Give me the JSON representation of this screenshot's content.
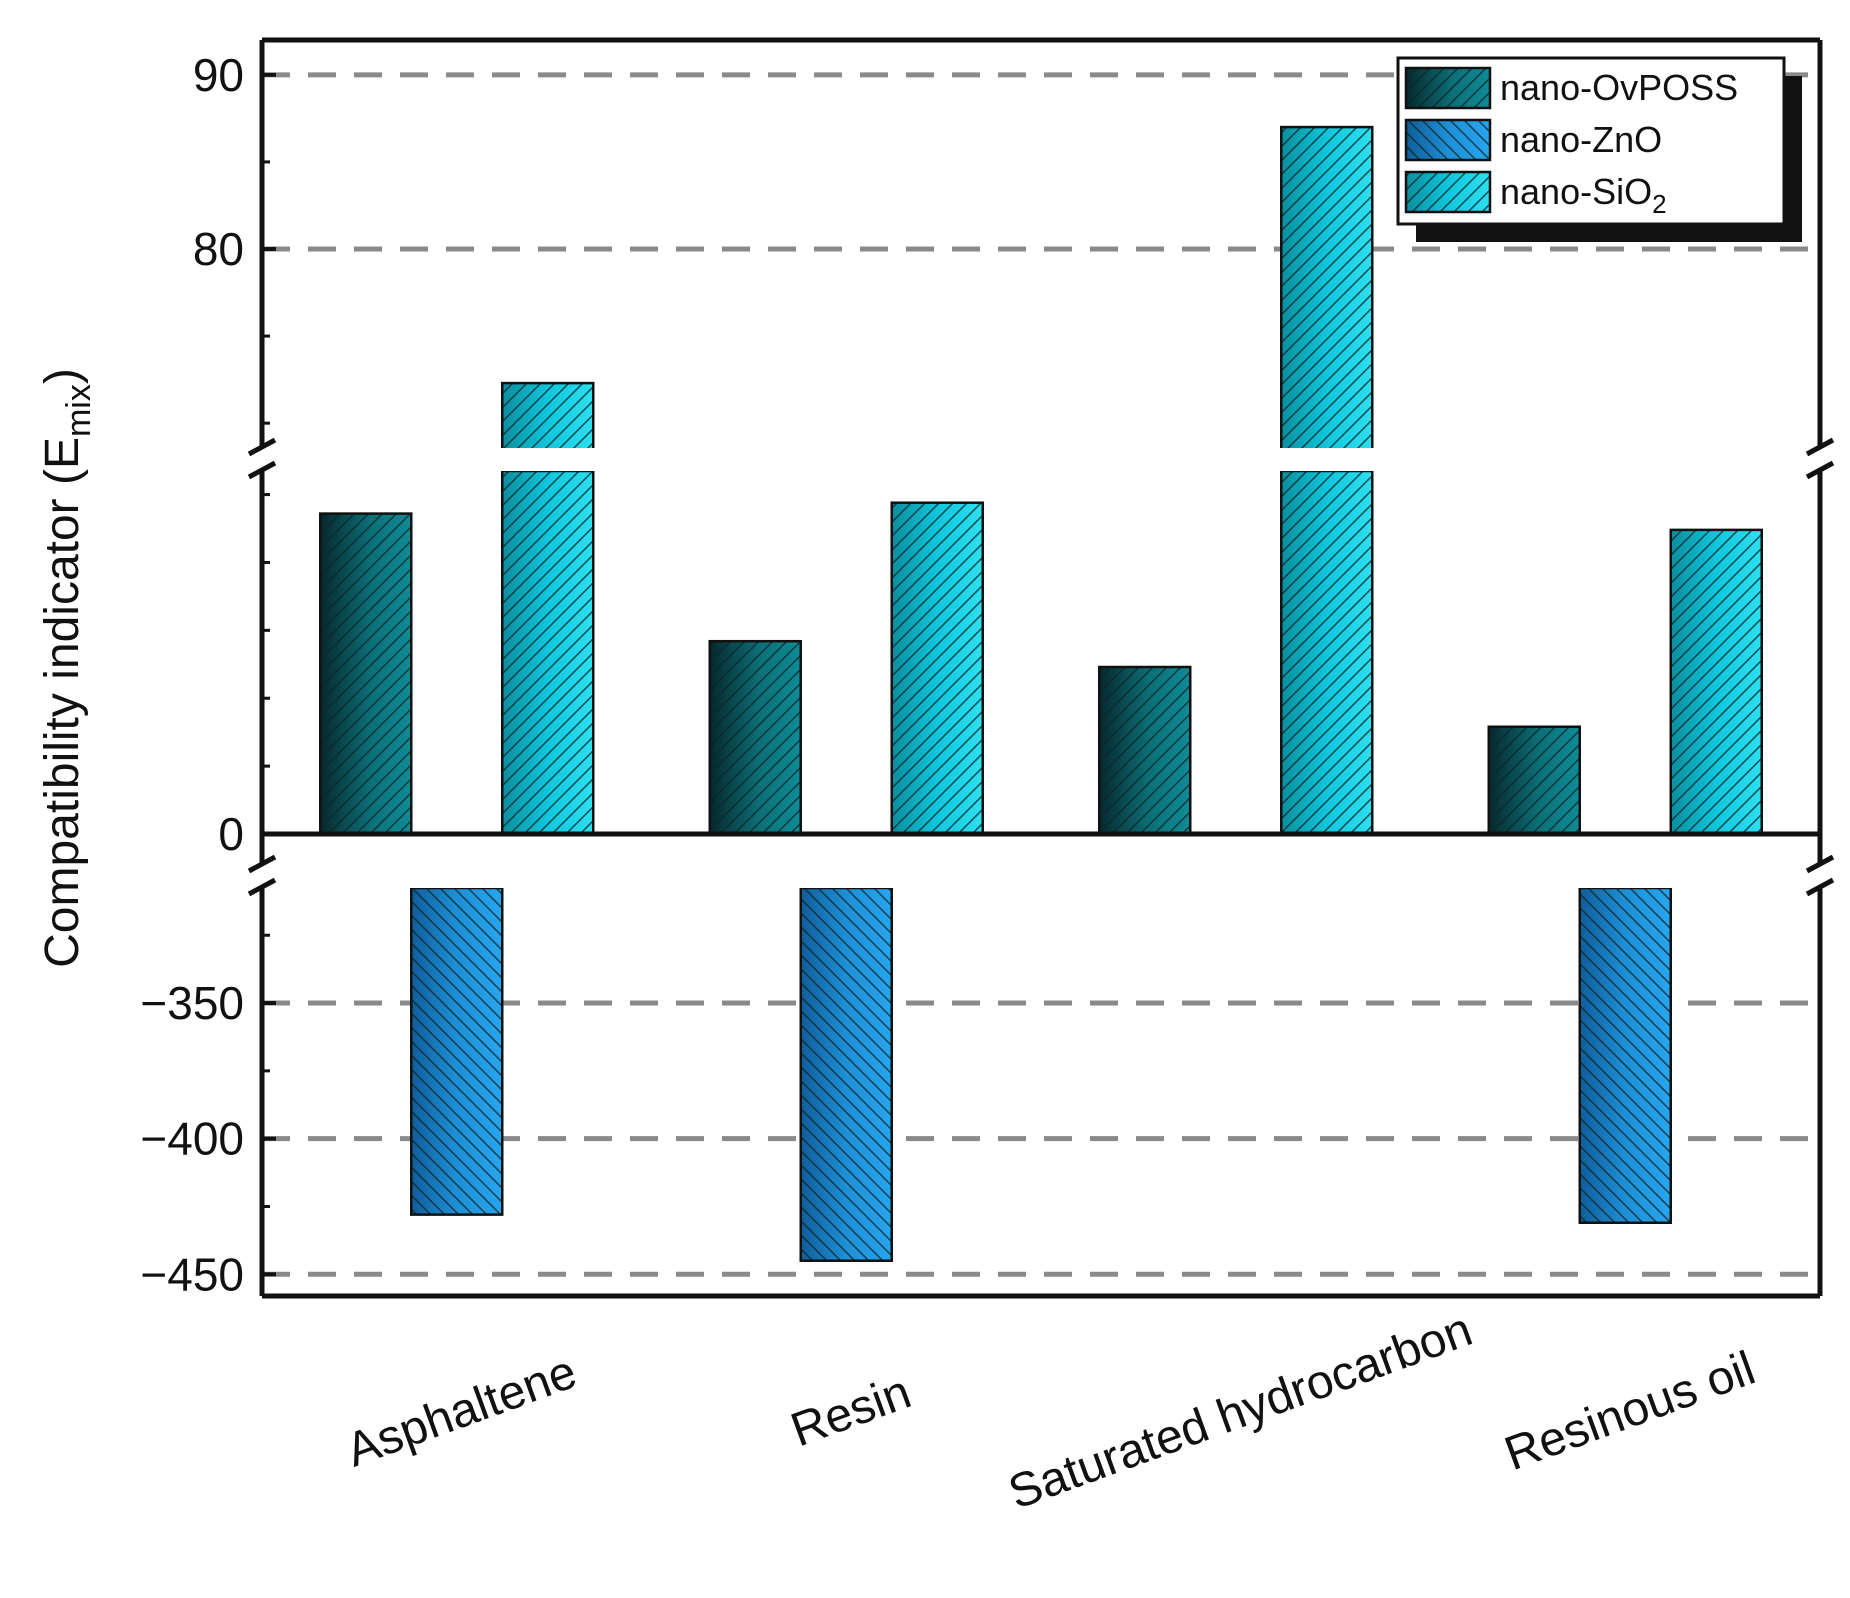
{
  "chart_data": {
    "type": "bar",
    "title": "",
    "xlabel": "",
    "ylabel": {
      "main": "Compatibility indicator (E",
      "sub": "mix",
      "close": ")"
    },
    "categories": [
      "Asphaltene",
      "Resin",
      "Saturated hydrocarbon",
      "Resinous oil"
    ],
    "series": [
      {
        "name": "nano-OvPOSS",
        "legend_main": "nano-OvPOSS",
        "legend_sub": "",
        "values": [
          23.6,
          14.2,
          12.3,
          7.9
        ],
        "color": "#0c6f77"
      },
      {
        "name": "nano-ZnO",
        "legend_main": "nano-ZnO",
        "legend_sub": "",
        "values": [
          -428,
          -445,
          -307,
          -431
        ],
        "color": "#1e8fd6"
      },
      {
        "name": "nano-SiO2",
        "legend_main": "nano-SiO",
        "legend_sub": "2",
        "values": [
          72.3,
          24.4,
          87.0,
          22.4
        ],
        "color": "#11c6dc"
      }
    ],
    "y_segments": [
      {
        "range": [
          68,
          92
        ],
        "ticks": [
          80,
          90
        ],
        "gridlines": [
          80,
          90
        ]
      },
      {
        "range": [
          0,
          26
        ],
        "ticks": [
          0
        ],
        "gridlines": []
      },
      {
        "range": [
          -458,
          -305
        ],
        "ticks": [
          -350,
          -400,
          -450
        ],
        "gridlines": [
          -350,
          -400,
          -450
        ]
      }
    ],
    "axis_breaks": true,
    "hatch": "diagonal",
    "legend_position": "top-right",
    "grid": "dashed"
  }
}
